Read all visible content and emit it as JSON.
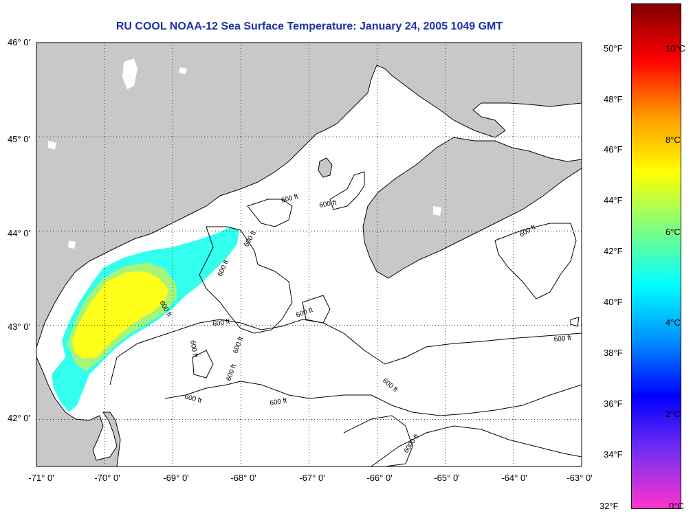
{
  "title": "RU COOL  NOAA-12  Sea Surface Temperature:  January 24, 2005 1049 GMT",
  "map": {
    "lon_range": [
      -71,
      -63
    ],
    "lat_range": [
      41.5,
      46
    ],
    "lat_ticks": [
      "46° 0'",
      "45° 0'",
      "44° 0'",
      "43° 0'",
      "42° 0'"
    ],
    "lon_ticks": [
      "-71° 0'",
      "-70° 0'",
      "-69° 0'",
      "-68° 0'",
      "-67° 0'",
      "-66° 0'",
      "-65° 0'",
      "-64° 0'",
      "-63° 0'"
    ],
    "grid": "dotted",
    "land_color": "#c8c8c8",
    "water_color": "#ffffff",
    "contour_labels": [
      "600 ft",
      "600 ft",
      "600 ft",
      "600 ft",
      "600 ft",
      "600 ft",
      "600 ft",
      "600 ft",
      "600 ft",
      "600 ft",
      "600 ft",
      "600 ft",
      "600 ft",
      "600 ft",
      "600 ft",
      "6000 ft"
    ]
  },
  "legend": {
    "position": "right",
    "fahrenheit_labels": [
      "50°F",
      "48°F",
      "46°F",
      "44°F",
      "42°F",
      "40°F",
      "38°F",
      "36°F",
      "34°F",
      "32°F"
    ],
    "celsius_labels": [
      "10°C",
      "8°C",
      "6°C",
      "4°C",
      "2°C",
      "0°C"
    ],
    "fahrenheit_values": [
      50,
      48,
      46,
      44,
      42,
      40,
      38,
      36,
      34,
      32
    ],
    "celsius_values": [
      10,
      8,
      6,
      4,
      2,
      0
    ],
    "colors": [
      "#ff33cc",
      "#7a2ff0",
      "#0000ff",
      "#0090ff",
      "#00ffff",
      "#7fff7f",
      "#ffff00",
      "#ff9900",
      "#ff0000",
      "#800000"
    ]
  }
}
